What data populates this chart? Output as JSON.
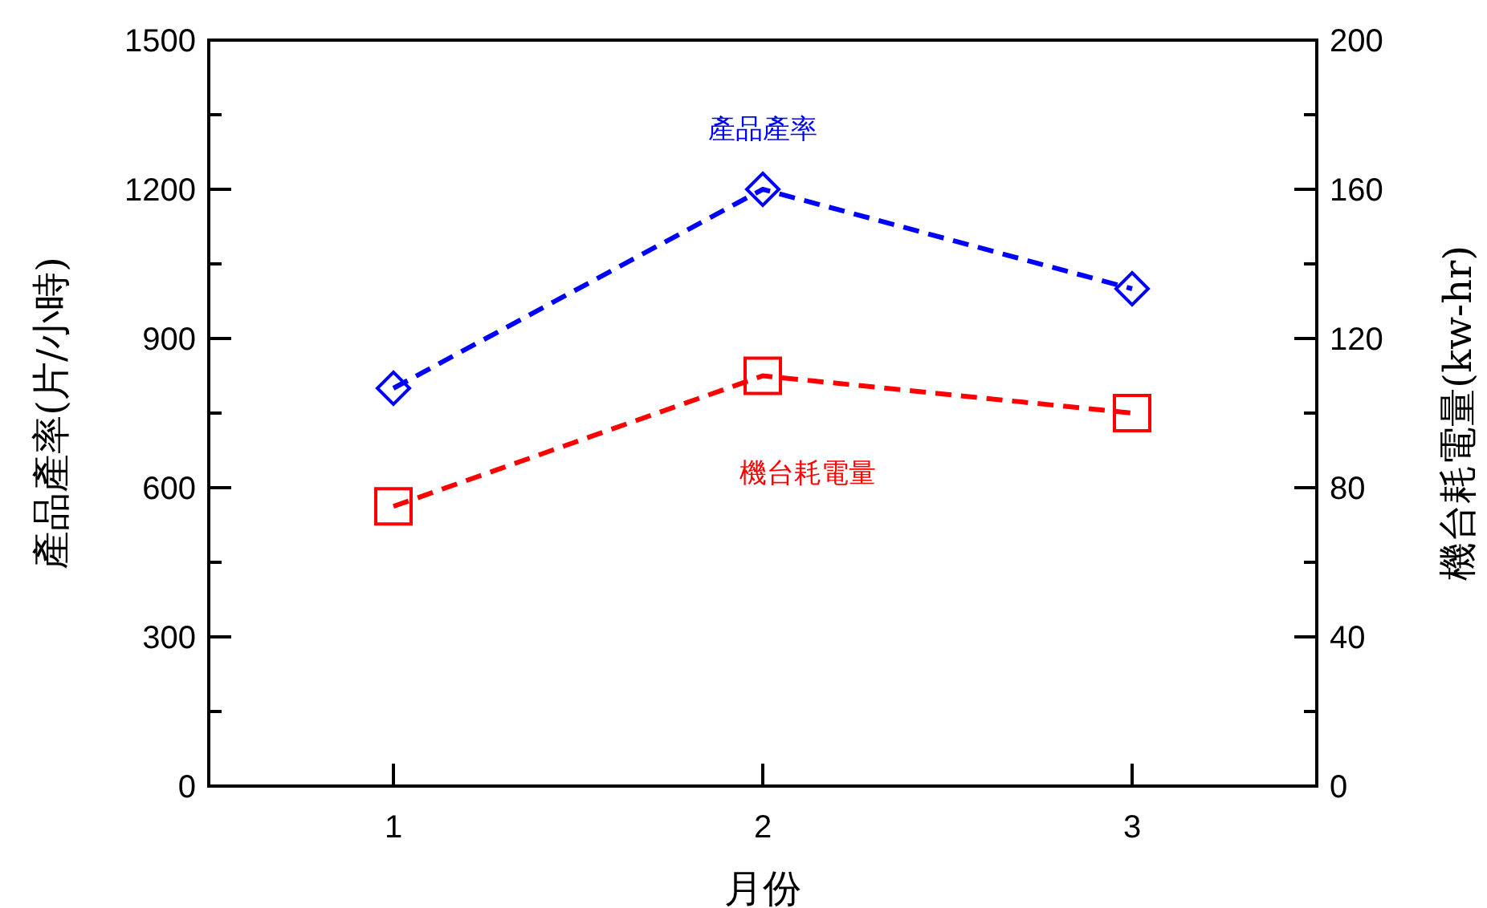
{
  "chart_data": {
    "type": "line",
    "xlabel": "月份",
    "ylabel": "產品產率(片/小時)",
    "y2label": "機台耗電量(kw-hr)",
    "x": [
      1,
      2,
      3
    ],
    "xlim": [
      0.5,
      3.5
    ],
    "xticks": [
      1,
      2,
      3
    ],
    "ylim": [
      0,
      1500
    ],
    "yticks": [
      0,
      {
        "value": 150,
        "label": null
      },
      300,
      {
        "value": 450,
        "label": null
      },
      600,
      {
        "value": 750,
        "label": null
      },
      900,
      {
        "value": 1050,
        "label": null
      },
      1200,
      {
        "value": 1350,
        "label": null
      },
      1500
    ],
    "y2lim": [
      0,
      200
    ],
    "y2ticks": [
      0,
      {
        "value": 20,
        "label": null
      },
      40,
      {
        "value": 60,
        "label": null
      },
      80,
      {
        "value": 100,
        "label": null
      },
      120,
      {
        "value": 140,
        "label": null
      },
      160,
      {
        "value": 180,
        "label": null
      },
      200
    ],
    "line_style": "dashed",
    "grid": false,
    "series": [
      {
        "name": "產品產率",
        "color": "#0000ff",
        "marker": "diamond",
        "values": [
          800,
          1200,
          1000
        ]
      },
      {
        "name": "機台耗電量",
        "color": "#ff0000",
        "marker": "square",
        "axis": "y2",
        "values": [
          75,
          110,
          100
        ]
      }
    ]
  }
}
